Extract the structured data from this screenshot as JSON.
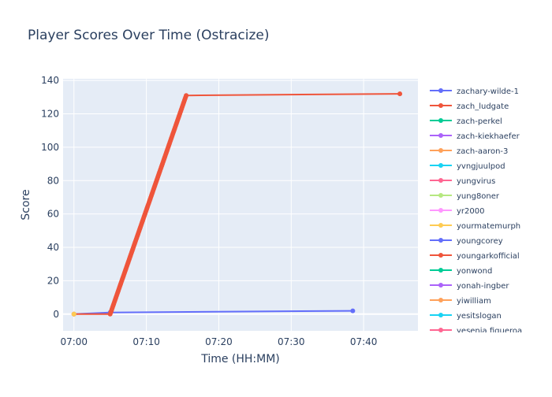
{
  "chart_data": {
    "type": "line",
    "title": "Player Scores Over Time (Ostracize)",
    "xlabel": "Time (HH:MM)",
    "ylabel": "Score",
    "x_ticks": [
      "07:00",
      "07:10",
      "07:20",
      "07:30",
      "07:40"
    ],
    "x_range": [
      "06:58:30",
      "07:47:30"
    ],
    "y_ticks": [
      0,
      20,
      40,
      60,
      80,
      100,
      120,
      140
    ],
    "ylim": [
      -10,
      141
    ],
    "grid": true,
    "legend_position": "right",
    "legend": [
      {
        "name": "zachary-wilde-1",
        "color": "#636efa"
      },
      {
        "name": "zach_ludgate",
        "color": "#EF553B"
      },
      {
        "name": "zach-perkel",
        "color": "#00cc96"
      },
      {
        "name": "zach-kiekhaefer",
        "color": "#ab63fa"
      },
      {
        "name": "zach-aaron-3",
        "color": "#FFA15A"
      },
      {
        "name": "yvngjuulpod",
        "color": "#19d3f3"
      },
      {
        "name": "yungvirus",
        "color": "#FF6692"
      },
      {
        "name": "yung8oner",
        "color": "#B6E880"
      },
      {
        "name": "yr2000",
        "color": "#FF97FF"
      },
      {
        "name": "yourmatemurph",
        "color": "#FECB52"
      },
      {
        "name": "youngcorey",
        "color": "#636efa"
      },
      {
        "name": "youngarkofficial",
        "color": "#EF553B"
      },
      {
        "name": "yonwond",
        "color": "#00cc96"
      },
      {
        "name": "yonah-ingber",
        "color": "#ab63fa"
      },
      {
        "name": "yiwilliam",
        "color": "#FFA15A"
      },
      {
        "name": "yesitslogan",
        "color": "#19d3f3"
      },
      {
        "name": "yesenia figueroa",
        "color": "#FF6692"
      }
    ],
    "series": [
      {
        "name": "zachary-wilde-1",
        "color": "#636efa",
        "x": [
          "07:00:00",
          "07:05:00",
          "07:38:30"
        ],
        "y": [
          0,
          1,
          2
        ]
      },
      {
        "name": "zach_ludgate",
        "color": "#EF553B",
        "ramp": {
          "x_start": "07:05:00",
          "x_end": "07:15:30",
          "y_start": 0,
          "y_end": 131,
          "step": 1
        },
        "x": [
          "07:00:00",
          "07:05:00",
          "07:15:30",
          "07:45:00"
        ],
        "y": [
          0,
          0,
          131,
          132
        ]
      },
      {
        "name": "zach-aaron-3",
        "color": "#FFA15A",
        "x": [
          "07:00:00"
        ],
        "y": [
          0
        ]
      },
      {
        "name": "yourmatemurph",
        "color": "#FECB52",
        "x": [
          "07:00:00"
        ],
        "y": [
          0
        ]
      }
    ]
  }
}
